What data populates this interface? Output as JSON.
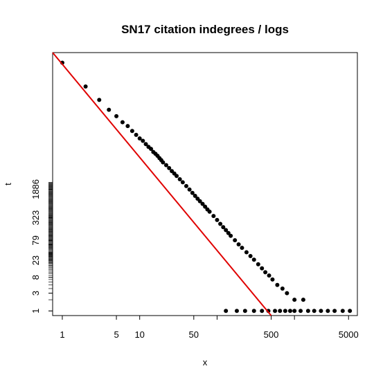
{
  "chart_data": {
    "type": "scatter",
    "title": "SN17 citation indegrees / logs",
    "xlabel": "x",
    "ylabel": "t",
    "x_scale": "log",
    "y_scale": "log",
    "xlim": [
      0.75,
      6500
    ],
    "ylim": [
      0.75,
      9000000
    ],
    "x_ticks": [
      1,
      5,
      10,
      50,
      500,
      5000
    ],
    "x_ticks_unlabeled": [
      100,
      1000
    ],
    "y_ticks": [
      1,
      3,
      8,
      23,
      79,
      323,
      1886
    ],
    "grid": false,
    "legend": "none",
    "series": [
      {
        "name": "",
        "marker": "filled-circle",
        "color": "#000000",
        "points": [
          [
            1,
            4800000
          ],
          [
            2,
            1100000
          ],
          [
            3,
            480000
          ],
          [
            4,
            260000
          ],
          [
            5,
            175000
          ],
          [
            6,
            120000
          ],
          [
            7,
            95000
          ],
          [
            8,
            70000
          ],
          [
            9,
            55000
          ],
          [
            10,
            44000
          ],
          [
            11,
            38000
          ],
          [
            12,
            31000
          ],
          [
            13,
            26000
          ],
          [
            14,
            23000
          ],
          [
            15,
            19000
          ],
          [
            16,
            17000
          ],
          [
            17,
            15000
          ],
          [
            18,
            13000
          ],
          [
            19,
            11500
          ],
          [
            20,
            10000
          ],
          [
            22,
            8400
          ],
          [
            24,
            7000
          ],
          [
            26,
            5800
          ],
          [
            28,
            5000
          ],
          [
            30,
            4300
          ],
          [
            33,
            3500
          ],
          [
            36,
            2900
          ],
          [
            40,
            2300
          ],
          [
            44,
            1850
          ],
          [
            48,
            1500
          ],
          [
            52,
            1250
          ],
          [
            56,
            1050
          ],
          [
            60,
            900
          ],
          [
            65,
            760
          ],
          [
            70,
            640
          ],
          [
            75,
            540
          ],
          [
            80,
            470
          ],
          [
            90,
            360
          ],
          [
            100,
            280
          ],
          [
            110,
            220
          ],
          [
            120,
            180
          ],
          [
            130,
            150
          ],
          [
            140,
            125
          ],
          [
            150,
            105
          ],
          [
            170,
            80
          ],
          [
            190,
            62
          ],
          [
            210,
            50
          ],
          [
            240,
            38
          ],
          [
            270,
            30
          ],
          [
            300,
            24
          ],
          [
            340,
            18
          ],
          [
            380,
            14
          ],
          [
            420,
            11
          ],
          [
            470,
            9
          ],
          [
            520,
            7
          ],
          [
            600,
            5
          ],
          [
            700,
            4
          ],
          [
            800,
            3
          ],
          [
            1000,
            2
          ],
          [
            1300,
            2
          ]
        ],
        "tail_at_one": [
          130,
          180,
          230,
          300,
          380,
          460,
          560,
          650,
          760,
          880,
          1000,
          1200,
          1500,
          1800,
          2200,
          2700,
          3300,
          4200,
          5200
        ]
      }
    ],
    "fit_line": {
      "color": "#e00000",
      "from": [
        0.75,
        9000000
      ],
      "to": [
        500,
        0.75
      ]
    }
  }
}
